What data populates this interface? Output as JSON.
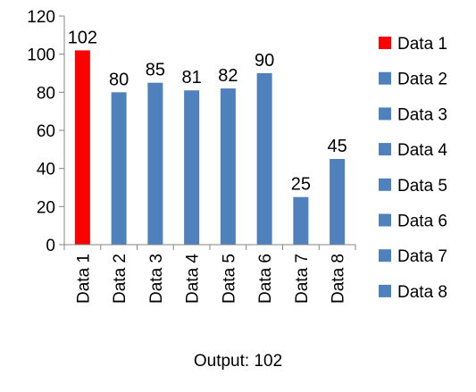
{
  "chart_data": {
    "type": "bar",
    "title": "",
    "xlabel": "",
    "ylabel": "",
    "categories": [
      "Data 1",
      "Data 2",
      "Data 3",
      "Data 4",
      "Data 5",
      "Data 6",
      "Data 7",
      "Data 8"
    ],
    "values": [
      102,
      80,
      85,
      81,
      82,
      90,
      25,
      45
    ],
    "colors": [
      "#ff0000",
      "#4f81bd",
      "#4f81bd",
      "#4f81bd",
      "#4f81bd",
      "#4f81bd",
      "#4f81bd",
      "#4f81bd"
    ],
    "ylim": [
      0,
      120
    ],
    "yticks": [
      0,
      20,
      40,
      60,
      80,
      100,
      120
    ],
    "grid": false,
    "data_labels": true,
    "legend": {
      "placement": "right",
      "entries": [
        {
          "label": "Data 1",
          "color": "#ff0000"
        },
        {
          "label": "Data 2",
          "color": "#4f81bd"
        },
        {
          "label": "Data 3",
          "color": "#4f81bd"
        },
        {
          "label": "Data 4",
          "color": "#4f81bd"
        },
        {
          "label": "Data 5",
          "color": "#4f81bd"
        },
        {
          "label": "Data 6",
          "color": "#4f81bd"
        },
        {
          "label": "Data 7",
          "color": "#4f81bd"
        },
        {
          "label": "Data 8",
          "color": "#4f81bd"
        }
      ]
    }
  },
  "footer": {
    "output_text": "Output: 102"
  }
}
